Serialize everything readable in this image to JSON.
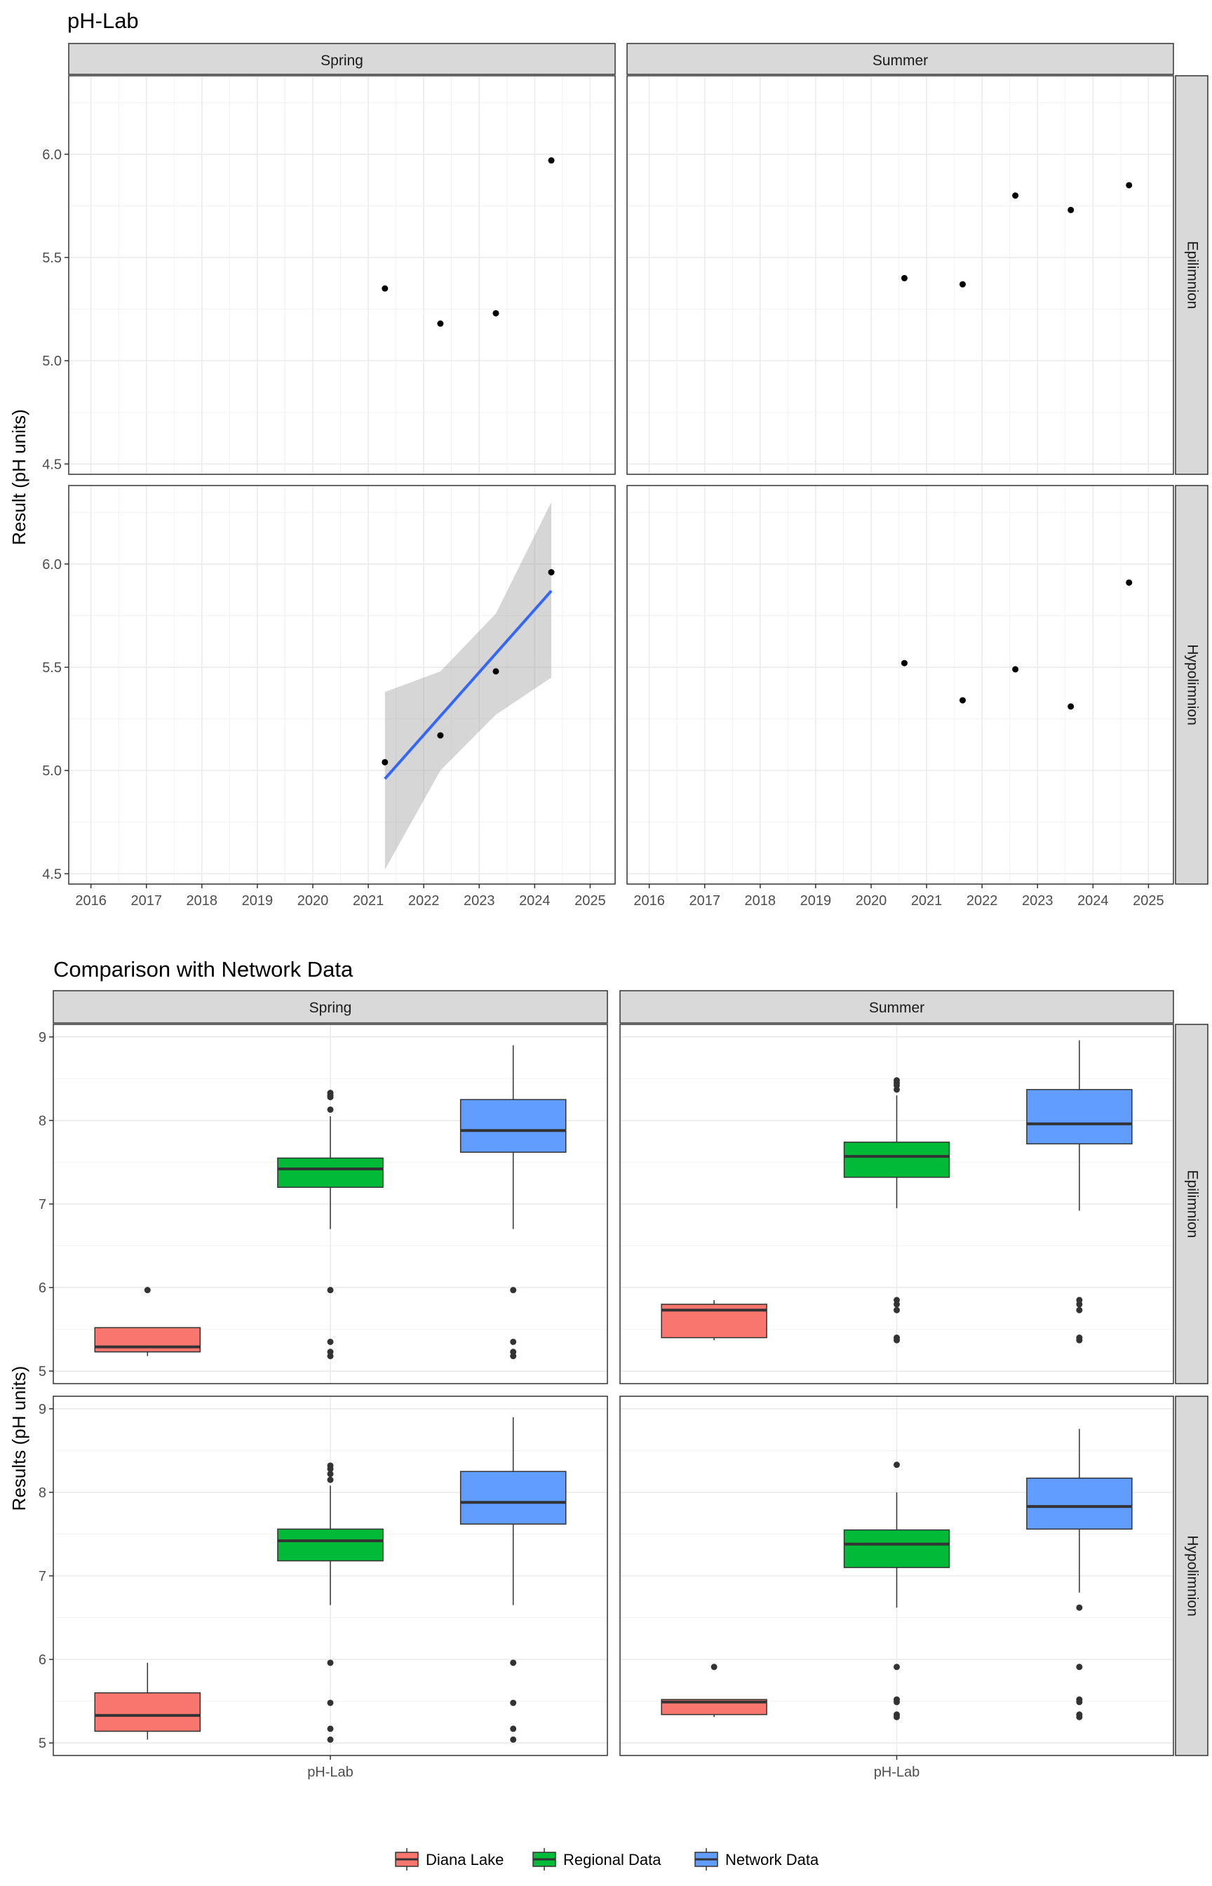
{
  "chart_data": [
    {
      "type": "scatter",
      "title": "pH-Lab",
      "xlabel": "",
      "ylabel": "Result (pH units)",
      "xlim": [
        2015.6,
        2025.45
      ],
      "ylim": [
        4.45,
        6.38
      ],
      "x_ticks": [
        2016,
        2017,
        2018,
        2019,
        2020,
        2021,
        2022,
        2023,
        2024,
        2025
      ],
      "y_ticks": [
        4.5,
        5.0,
        5.5,
        6.0
      ],
      "y_tick_labels": [
        "4.5",
        "5.0",
        "5.5",
        "6.0"
      ],
      "facet_columns": [
        "Spring",
        "Summer"
      ],
      "facet_rows": [
        "Epilimnion",
        "Hypolimnion"
      ],
      "grid": true,
      "panels": [
        {
          "column": "Spring",
          "row": "Epilimnion",
          "points": [
            [
              2021.3,
              5.35
            ],
            [
              2022.3,
              5.18
            ],
            [
              2023.3,
              5.23
            ],
            [
              2024.3,
              5.97
            ]
          ]
        },
        {
          "column": "Summer",
          "row": "Epilimnion",
          "points": [
            [
              2020.6,
              5.4
            ],
            [
              2021.65,
              5.37
            ],
            [
              2022.6,
              5.8
            ],
            [
              2023.6,
              5.73
            ],
            [
              2024.65,
              5.85
            ]
          ]
        },
        {
          "column": "Spring",
          "row": "Hypolimnion",
          "points": [
            [
              2021.3,
              5.04
            ],
            [
              2022.3,
              5.17
            ],
            [
              2023.3,
              5.48
            ],
            [
              2024.3,
              5.96
            ]
          ],
          "trend": {
            "x": [
              2021.3,
              2024.3
            ],
            "y": [
              4.96,
              5.87
            ],
            "color": "#3366FF",
            "band_upper": [
              5.38,
              5.48,
              5.76,
              6.3
            ],
            "band_lower": [
              4.52,
              5.0,
              5.27,
              5.45
            ],
            "band_x": [
              2021.3,
              2022.3,
              2023.3,
              2024.3
            ]
          }
        },
        {
          "column": "Summer",
          "row": "Hypolimnion",
          "points": [
            [
              2020.6,
              5.52
            ],
            [
              2021.65,
              5.34
            ],
            [
              2022.6,
              5.49
            ],
            [
              2023.6,
              5.31
            ],
            [
              2024.65,
              5.91
            ]
          ]
        }
      ]
    },
    {
      "type": "box",
      "title": "Comparison with Network Data",
      "xlabel": "",
      "ylabel": "Results (pH units)",
      "category": "pH-Lab",
      "ylim": [
        4.85,
        9.15
      ],
      "y_ticks": [
        5,
        6,
        7,
        8,
        9
      ],
      "facet_columns": [
        "Spring",
        "Summer"
      ],
      "facet_rows": [
        "Epilimnion",
        "Hypolimnion"
      ],
      "legend": {
        "position": "bottom",
        "entries": [
          {
            "name": "Diana Lake",
            "color": "#F8766D"
          },
          {
            "name": "Regional Data",
            "color": "#00BA38"
          },
          {
            "name": "Network Data",
            "color": "#619CFF"
          }
        ]
      },
      "panels": [
        {
          "column": "Spring",
          "row": "Epilimnion",
          "groups": [
            {
              "name": "Diana Lake",
              "lower": 5.18,
              "q1": 5.23,
              "median": 5.29,
              "q3": 5.52,
              "upper": 5.52,
              "outliers": [
                5.97
              ]
            },
            {
              "name": "Regional Data",
              "lower": 6.7,
              "q1": 7.2,
              "median": 7.42,
              "q3": 7.55,
              "upper": 8.05,
              "outliers": [
                8.28,
                8.3,
                8.33,
                8.13,
                5.97,
                5.35,
                5.23,
                5.18
              ]
            },
            {
              "name": "Network Data",
              "lower": 6.7,
              "q1": 7.62,
              "median": 7.88,
              "q3": 8.25,
              "upper": 8.9,
              "outliers": [
                5.97,
                5.35,
                5.23,
                5.18
              ]
            }
          ]
        },
        {
          "column": "Summer",
          "row": "Epilimnion",
          "groups": [
            {
              "name": "Diana Lake",
              "lower": 5.37,
              "q1": 5.4,
              "median": 5.73,
              "q3": 5.8,
              "upper": 5.85,
              "outliers": []
            },
            {
              "name": "Regional Data",
              "lower": 6.95,
              "q1": 7.32,
              "median": 7.57,
              "q3": 7.74,
              "upper": 8.3,
              "outliers": [
                8.37,
                8.42,
                8.45,
                8.48,
                5.85,
                5.8,
                5.73,
                5.4,
                5.37
              ]
            },
            {
              "name": "Network Data",
              "lower": 6.92,
              "q1": 7.72,
              "median": 7.96,
              "q3": 8.37,
              "upper": 8.96,
              "outliers": [
                5.85,
                5.8,
                5.73,
                5.4,
                5.37
              ]
            }
          ]
        },
        {
          "column": "Spring",
          "row": "Hypolimnion",
          "groups": [
            {
              "name": "Diana Lake",
              "lower": 5.04,
              "q1": 5.14,
              "median": 5.33,
              "q3": 5.6,
              "upper": 5.96,
              "outliers": []
            },
            {
              "name": "Regional Data",
              "lower": 6.65,
              "q1": 7.18,
              "median": 7.42,
              "q3": 7.56,
              "upper": 8.08,
              "outliers": [
                8.15,
                8.22,
                8.28,
                8.32,
                5.96,
                5.48,
                5.17,
                5.04
              ]
            },
            {
              "name": "Network Data",
              "lower": 6.65,
              "q1": 7.62,
              "median": 7.88,
              "q3": 8.25,
              "upper": 8.9,
              "outliers": [
                5.96,
                5.48,
                5.17,
                5.04
              ]
            }
          ]
        },
        {
          "column": "Summer",
          "row": "Hypolimnion",
          "groups": [
            {
              "name": "Diana Lake",
              "lower": 5.31,
              "q1": 5.34,
              "median": 5.49,
              "q3": 5.52,
              "upper": 5.52,
              "outliers": [
                5.91
              ]
            },
            {
              "name": "Regional Data",
              "lower": 6.62,
              "q1": 7.1,
              "median": 7.38,
              "q3": 7.55,
              "upper": 8.0,
              "outliers": [
                8.33,
                5.91,
                5.52,
                5.49,
                5.34,
                5.31
              ]
            },
            {
              "name": "Network Data",
              "lower": 6.8,
              "q1": 7.56,
              "median": 7.83,
              "q3": 8.17,
              "upper": 8.76,
              "outliers": [
                6.62,
                5.91,
                5.52,
                5.49,
                5.34,
                5.31
              ]
            }
          ]
        }
      ]
    }
  ]
}
